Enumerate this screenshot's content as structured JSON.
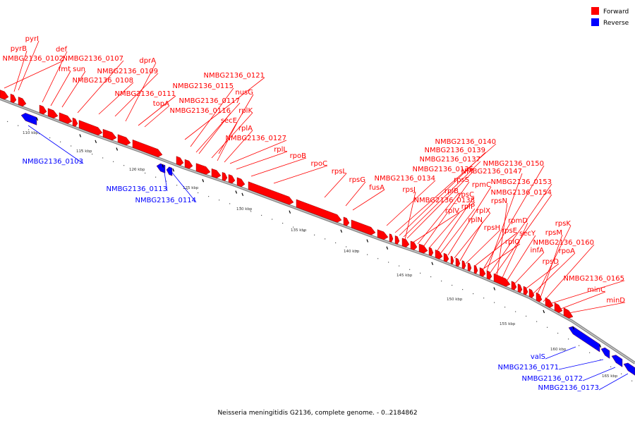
{
  "caption": "Neisseria meningitidis G2136, complete genome. - 0..2184862",
  "legend": [
    {
      "label": "Forward",
      "color": "#ff0000"
    },
    {
      "label": "Reverse",
      "color": "#0000ff"
    }
  ],
  "colors": {
    "forward": "#ff0000",
    "reverse": "#0000ff",
    "backbone": "#8a8a8a"
  },
  "ticks": [
    "110 kbp",
    "115 kbp",
    "120 kbp",
    "125 kbp",
    "130 kbp",
    "135 kbp",
    "140 kbp",
    "145 kbp",
    "150 kbp",
    "155 kbp",
    "160 kbp",
    "165 kbp"
  ],
  "forward_labels": [
    "pyrI",
    "pyrB",
    "NMBG2136_0102",
    "def",
    "fmt",
    "sun",
    "NMBG2136_0107",
    "dprA",
    "NMBG2136_0109",
    "NMBG2136_0108",
    "NMBG2136_0111",
    "topA",
    "NMBG2136_0121",
    "NMBG2136_0115",
    "nusG",
    "NMBG2136_0117",
    "NMBG2136_0116",
    "rplK",
    "secE",
    "rplA",
    "NMBG2136_0127",
    "rplL",
    "rpoB",
    "rpoC",
    "rpsL",
    "rpsG",
    "fusA",
    "NMBG2136_0140",
    "NMBG2136_0139",
    "NMBG2136_0137",
    "NMBG2136_0136",
    "NMBG2136_0134",
    "rpsJ",
    "NMBG2136_0138",
    "rplB",
    "rpsS",
    "rplV",
    "rpsC",
    "rplP",
    "rpmC",
    "rplX",
    "rplN",
    "rpsH",
    "rpsE",
    "rplO",
    "NMBG2136_0150",
    "NMBG2136_0147",
    "NMBG2136_0153",
    "NMBG2136_0154",
    "rpsN",
    "rpmD",
    "secY",
    "infA",
    "rpsD",
    "rpoA",
    "rpsK",
    "rpsM",
    "NMBG2136_0160",
    "NMBG2136_0165",
    "minC",
    "minD"
  ],
  "reverse_labels": [
    "NMBG2136_0103",
    "NMBG2136_0113",
    "NMBG2136_0114",
    "valS",
    "NMBG2136_0171",
    "NMBG2136_0172",
    "NMBG2136_0173"
  ]
}
